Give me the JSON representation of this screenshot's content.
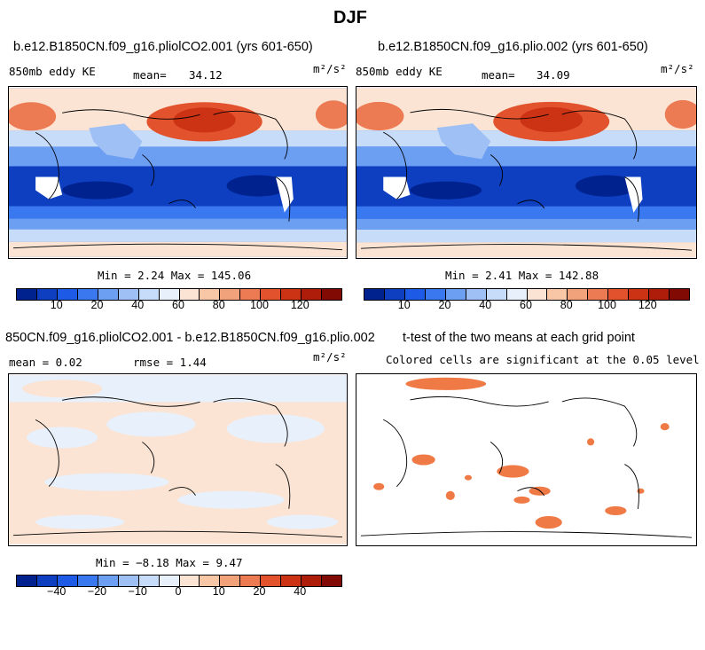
{
  "title": "DJF",
  "panels": {
    "p1": {
      "title": "b.e12.B1850CN.f09_g16.pliolCO2.001 (yrs 601-650)",
      "var_label": "850mb eddy KE",
      "mean_label": "mean=",
      "mean_value": "34.12",
      "units": "m²/s²",
      "minmax": "Min =   2.24 Max = 145.06"
    },
    "p2": {
      "title": "b.e12.B1850CN.f09_g16.plio.002 (yrs 601-650)",
      "var_label": "850mb eddy KE",
      "mean_label": "mean=",
      "mean_value": "34.09",
      "units": "m²/s²",
      "minmax": "Min =   2.41 Max = 142.88"
    },
    "p3": {
      "title": "850CN.f09_g16.pliolCO2.001 - b.e12.B1850CN.f09_g16.plio.002",
      "mean_text": "mean =   0.02",
      "rmse_text": "rmse =   1.44",
      "units": "m²/s²",
      "minmax": "Min =  −8.18 Max =   9.47"
    },
    "p4": {
      "title": "t-test of the two means at each grid point",
      "subtitle": "Colored cells are significant at the 0.05 level"
    }
  },
  "colorbar_abs": {
    "ticks": [
      "10",
      "20",
      "40",
      "60",
      "80",
      "100",
      "120"
    ],
    "colors": [
      "#00228f",
      "#0d3fc0",
      "#1d5ae6",
      "#3a78f0",
      "#6c9ef2",
      "#9fc0f5",
      "#c7dcf8",
      "#e8f0fb",
      "#fbe4d4",
      "#f7c7a6",
      "#f2a27a",
      "#ec7a53",
      "#e2522d",
      "#cc3214",
      "#ad1d0a",
      "#820a04"
    ]
  },
  "colorbar_diff": {
    "ticks": [
      "−40",
      "−20",
      "−10",
      "0",
      "10",
      "20",
      "40"
    ],
    "colors": [
      "#00228f",
      "#0d3fc0",
      "#1d5ae6",
      "#3a78f0",
      "#6c9ef2",
      "#9fc0f5",
      "#c7dcf8",
      "#e8f0fb",
      "#fbe4d4",
      "#f7c7a6",
      "#f2a27a",
      "#ec7a53",
      "#e2522d",
      "#cc3214",
      "#ad1d0a",
      "#820a04"
    ]
  },
  "significance_color": "#f07a45"
}
